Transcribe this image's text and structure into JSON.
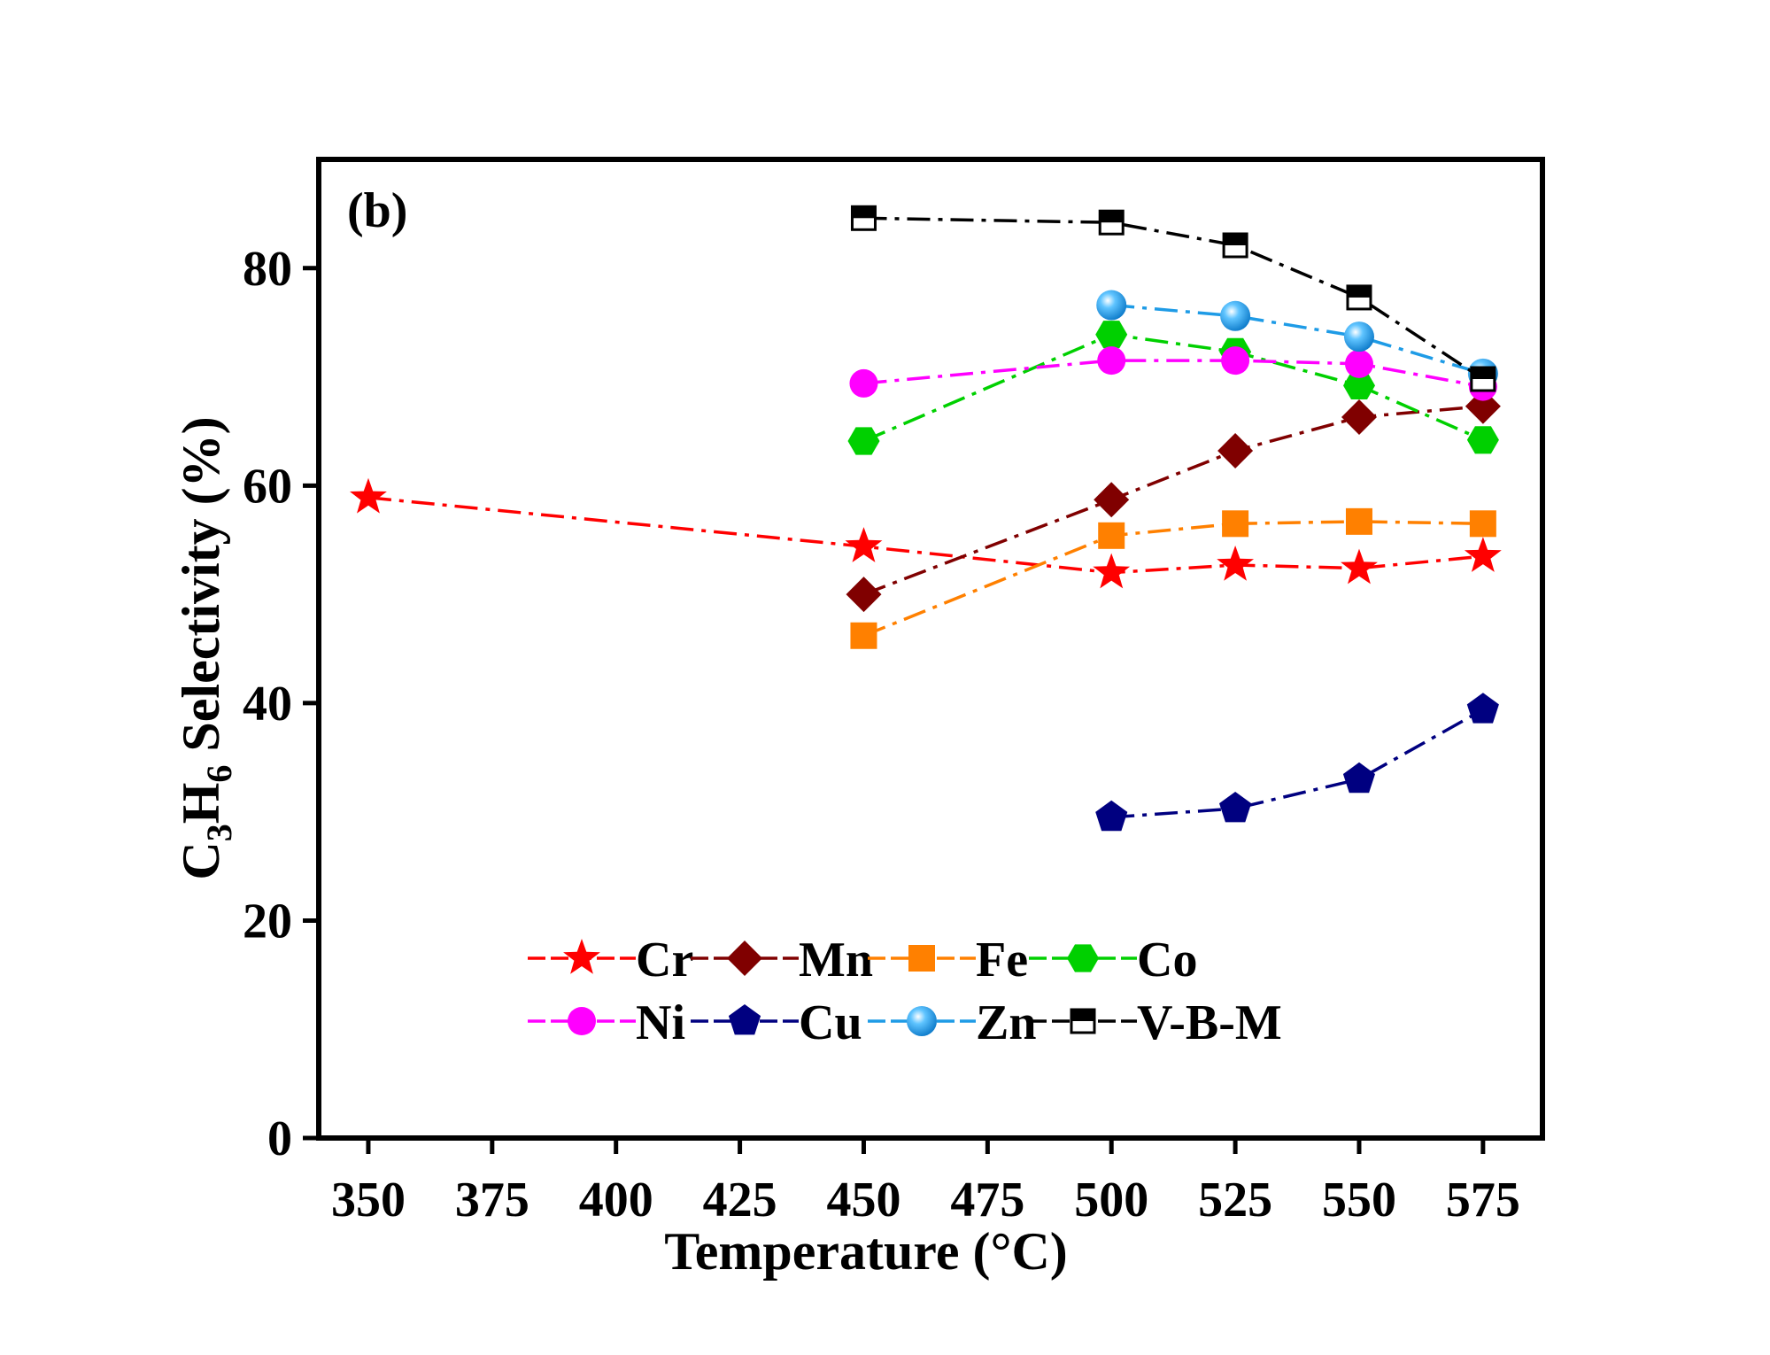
{
  "chart_data": {
    "type": "line",
    "panel_label": "(b)",
    "xlabel": "Temperature (°C)",
    "ylabel": {
      "prefix": "C",
      "sub1": "3",
      "mid": "H",
      "sub2": "6",
      "suffix": " Selectivity (%)"
    },
    "xlim": [
      340,
      587
    ],
    "ylim": [
      0,
      90
    ],
    "xticks": [
      350,
      375,
      400,
      425,
      450,
      475,
      500,
      525,
      550,
      575
    ],
    "yticks": [
      0,
      20,
      40,
      60,
      80
    ],
    "grid": false,
    "legend_position": "bottom-center",
    "series": [
      {
        "name": "Cr",
        "color": "#ff0000",
        "marker": "star",
        "x": [
          350,
          450,
          500,
          525,
          550,
          575
        ],
        "y": [
          58.9,
          54.4,
          52.0,
          52.7,
          52.4,
          53.5
        ]
      },
      {
        "name": "Mn",
        "color": "#800000",
        "marker": "diamond",
        "x": [
          450,
          500,
          525,
          550,
          575
        ],
        "y": [
          50.0,
          58.7,
          63.2,
          66.3,
          67.3
        ]
      },
      {
        "name": "Fe",
        "color": "#ff8000",
        "marker": "square",
        "x": [
          450,
          500,
          525,
          550,
          575
        ],
        "y": [
          46.2,
          55.4,
          56.5,
          56.7,
          56.5
        ]
      },
      {
        "name": "Co",
        "color": "#00d000",
        "marker": "hexagon",
        "x": [
          450,
          500,
          525,
          550,
          575
        ],
        "y": [
          64.1,
          73.9,
          72.3,
          69.2,
          64.2
        ]
      },
      {
        "name": "Ni",
        "color": "#ff00ff",
        "marker": "circle",
        "x": [
          450,
          500,
          525,
          550,
          575
        ],
        "y": [
          69.4,
          71.5,
          71.5,
          71.2,
          69.1
        ]
      },
      {
        "name": "Cu",
        "color": "#000080",
        "marker": "pentagon",
        "x": [
          500,
          525,
          550,
          575
        ],
        "y": [
          29.5,
          30.3,
          33.0,
          39.4
        ]
      },
      {
        "name": "Zn",
        "color": "#1e9be6",
        "marker": "ball",
        "x": [
          500,
          525,
          550,
          575
        ],
        "y": [
          76.6,
          75.6,
          73.7,
          70.3
        ]
      },
      {
        "name": "V-B-M",
        "color": "#000000",
        "marker": "half-square",
        "x": [
          450,
          500,
          525,
          550,
          575
        ],
        "y": [
          84.6,
          84.2,
          82.1,
          77.3,
          69.8
        ]
      }
    ]
  }
}
